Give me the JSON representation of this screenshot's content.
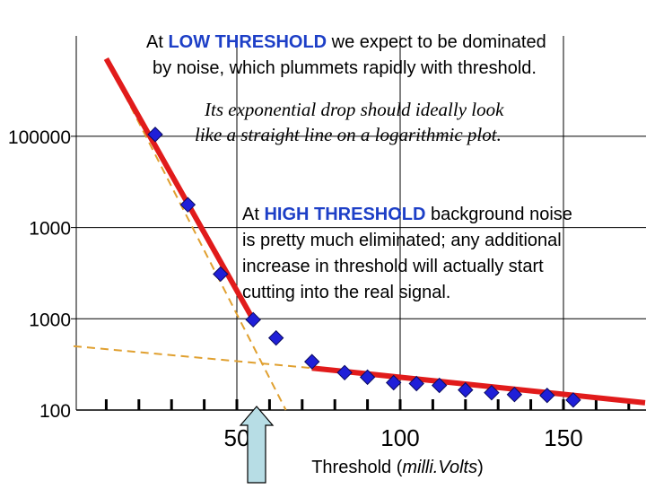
{
  "chart_data": {
    "type": "scatter",
    "xlabel_prefix": "Threshold (",
    "xlabel_unit": "milli.Volts",
    "xlabel_suffix": ")",
    "x_ticks": [
      50,
      100,
      150
    ],
    "x_tick_labels": [
      "50",
      "100",
      "150"
    ],
    "y_tick_labels": [
      "100000",
      "1000",
      "1000",
      "100"
    ],
    "xlim": [
      0,
      175
    ],
    "ylim_label_note": "logarithmic",
    "points": {
      "x": [
        25,
        35,
        45,
        55,
        62,
        73,
        83,
        90,
        98,
        105,
        112,
        120,
        128,
        135,
        145,
        153
      ],
      "y_level": [
        3.02,
        2.25,
        1.49,
        0.99,
        0.79,
        0.53,
        0.41,
        0.36,
        0.3,
        0.29,
        0.27,
        0.22,
        0.19,
        0.17,
        0.16,
        0.11
      ]
    },
    "fit_lines": {
      "low_threshold": {
        "x": [
          10,
          55
        ],
        "y_level": [
          3.85,
          0.99
        ]
      },
      "high_threshold": {
        "x": [
          73,
          175
        ],
        "y_level": [
          0.46,
          0.08
        ]
      }
    },
    "dashed_lines": {
      "low_threshold_ext": {
        "x": [
          10,
          65
        ],
        "y_level": [
          3.85,
          0.0
        ]
      },
      "high_threshold_ext": {
        "x": [
          0,
          73
        ],
        "y_level": [
          0.7,
          0.46
        ]
      }
    },
    "colors": {
      "points": "#1f1fd8",
      "fit": "#e11b1b",
      "dashed": "#e0a030",
      "highlight": "#1d3fc7",
      "arrow_fill": "#b7dde5"
    },
    "annotations": {
      "low": {
        "prefix": "At ",
        "highlight": "LOW THRESHOLD",
        "rest1": " we expect to be dominated",
        "line2": "by noise, which plummets rapidly with threshold."
      },
      "italic": {
        "line1": "Its exponential drop should ideally look",
        "line2": "like a straight line on a logarithmic plot."
      },
      "high": {
        "prefix": "At ",
        "highlight": "HIGH THRESHOLD",
        "rest1": " background noise",
        "line2": "is pretty much eliminated; any additional",
        "line3": "increase in threshold will actually start",
        "line4": "cutting into the real signal."
      }
    }
  }
}
